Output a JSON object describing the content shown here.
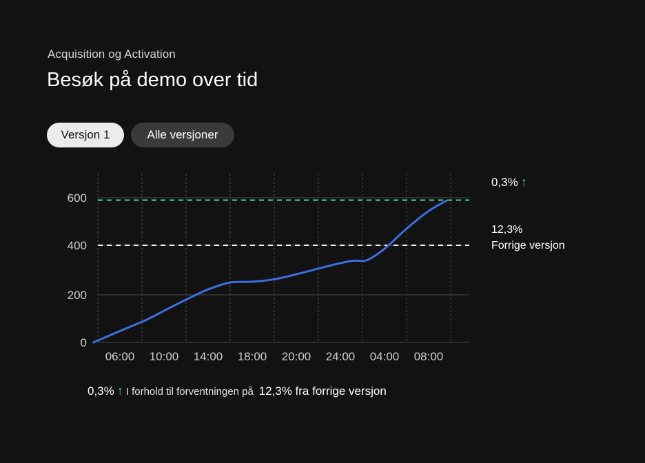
{
  "header": {
    "eyebrow": "Acquisition og Activation",
    "title": "Besøk på demo over tid"
  },
  "tabs": [
    {
      "label": "Versjon 1",
      "active": true
    },
    {
      "label": "Alle versjoner",
      "active": false
    }
  ],
  "reference_labels": {
    "target": {
      "value": "0,3%",
      "arrow": "↑"
    },
    "previous": {
      "value": "12,3%",
      "label": "Forrige versjon"
    }
  },
  "footer": {
    "change": "0,3%",
    "arrow": "↑",
    "text": "I forhold til forventningen på",
    "expected": "12,3%",
    "suffix": "fra forrige versjon"
  },
  "colors": {
    "line": "#3b6fe0",
    "target_line": "#39d7a1",
    "previous_line": "#ffffff",
    "grid": "#4a4a4a",
    "accent_arrow": "#39d7a1"
  },
  "chart_data": {
    "type": "line",
    "categories": [
      "06:00",
      "10:00",
      "14:00",
      "18:00",
      "20:00",
      "24:00",
      "04:00",
      "08:00"
    ],
    "y_ticks": [
      {
        "label": "0",
        "value": 0
      },
      {
        "label": "200",
        "value": 200
      },
      {
        "label": "400",
        "value": 400
      },
      {
        "label": "600",
        "value": 600
      }
    ],
    "x": [
      -0.6,
      0,
      0.6,
      1,
      1.5,
      2,
      2.5,
      3,
      3.5,
      4,
      4.5,
      5,
      5.3,
      5.6,
      6,
      6.5,
      7,
      7.4
    ],
    "values": [
      0,
      48,
      95,
      133,
      180,
      222,
      250,
      253,
      263,
      283,
      306,
      328,
      338,
      340,
      386,
      470,
      544,
      587
    ],
    "reference_lines": [
      {
        "name": "target",
        "value": 590,
        "style": "dashed"
      },
      {
        "name": "previous",
        "value": 400,
        "style": "dashed"
      }
    ],
    "ylim": [
      0,
      600
    ],
    "grid": true
  }
}
